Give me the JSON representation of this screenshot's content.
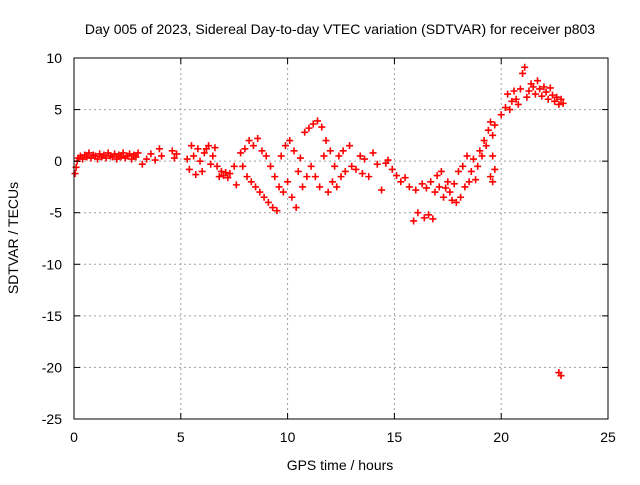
{
  "chart_data": {
    "type": "scatter",
    "title": "Day 005 of 2023, Sidereal Day-to-day VTEC variation (SDTVAR) for receiver p803",
    "xlabel": "GPS time / hours",
    "ylabel": "SDTVAR / TECUs",
    "xlim": [
      0,
      25
    ],
    "ylim": [
      -25,
      10
    ],
    "x_ticks": [
      0,
      5,
      10,
      15,
      20,
      25
    ],
    "y_ticks": [
      -25,
      -20,
      -15,
      -10,
      -5,
      0,
      5,
      10
    ],
    "grid": true,
    "marker": "+",
    "series": [
      {
        "name": "SDTVAR",
        "color": "#ff0000",
        "points": [
          [
            0.05,
            -1.2
          ],
          [
            0.1,
            -0.6
          ],
          [
            0.15,
            0.0
          ],
          [
            0.2,
            0.3
          ],
          [
            0.3,
            0.5
          ],
          [
            0.4,
            0.2
          ],
          [
            0.5,
            0.6
          ],
          [
            0.6,
            0.4
          ],
          [
            0.7,
            0.8
          ],
          [
            0.8,
            0.3
          ],
          [
            0.9,
            0.6
          ],
          [
            1.0,
            0.5
          ],
          [
            1.1,
            0.2
          ],
          [
            1.2,
            0.7
          ],
          [
            1.3,
            0.4
          ],
          [
            1.4,
            0.6
          ],
          [
            1.5,
            0.3
          ],
          [
            1.6,
            0.8
          ],
          [
            1.7,
            0.5
          ],
          [
            1.8,
            0.4
          ],
          [
            1.9,
            0.7
          ],
          [
            2.0,
            0.2
          ],
          [
            2.1,
            0.6
          ],
          [
            2.2,
            0.4
          ],
          [
            2.3,
            0.8
          ],
          [
            2.4,
            0.3
          ],
          [
            2.5,
            0.5
          ],
          [
            2.6,
            0.7
          ],
          [
            2.7,
            0.2
          ],
          [
            2.8,
            0.6
          ],
          [
            2.9,
            0.4
          ],
          [
            3.0,
            0.8
          ],
          [
            3.2,
            -0.3
          ],
          [
            3.4,
            0.2
          ],
          [
            3.6,
            0.7
          ],
          [
            3.8,
            0.1
          ],
          [
            4.0,
            1.2
          ],
          [
            4.1,
            0.5
          ],
          [
            4.6,
            1.0
          ],
          [
            4.7,
            0.3
          ],
          [
            4.8,
            0.7
          ],
          [
            5.3,
            0.2
          ],
          [
            5.4,
            -0.8
          ],
          [
            5.5,
            1.5
          ],
          [
            5.6,
            0.5
          ],
          [
            5.7,
            -1.3
          ],
          [
            5.8,
            1.2
          ],
          [
            5.9,
            0.0
          ],
          [
            6.0,
            -1.0
          ],
          [
            6.1,
            0.8
          ],
          [
            6.2,
            1.2
          ],
          [
            6.3,
            1.5
          ],
          [
            6.4,
            -0.3
          ],
          [
            6.5,
            0.5
          ],
          [
            6.6,
            1.3
          ],
          [
            6.7,
            -0.5
          ],
          [
            6.8,
            -1.5
          ],
          [
            6.9,
            -1.0
          ],
          [
            7.0,
            -1.4
          ],
          [
            7.1,
            -1.1
          ],
          [
            7.2,
            -1.6
          ],
          [
            7.3,
            -1.2
          ],
          [
            7.5,
            -0.5
          ],
          [
            7.6,
            -2.3
          ],
          [
            7.8,
            0.8
          ],
          [
            7.9,
            -0.5
          ],
          [
            8.0,
            1.2
          ],
          [
            8.1,
            -1.5
          ],
          [
            8.2,
            2.0
          ],
          [
            8.3,
            -2.0
          ],
          [
            8.4,
            1.5
          ],
          [
            8.5,
            -2.5
          ],
          [
            8.6,
            2.2
          ],
          [
            8.7,
            -3.0
          ],
          [
            8.8,
            1.0
          ],
          [
            8.9,
            -3.5
          ],
          [
            9.0,
            0.5
          ],
          [
            9.1,
            -4.0
          ],
          [
            9.2,
            -0.5
          ],
          [
            9.3,
            -4.5
          ],
          [
            9.4,
            -1.5
          ],
          [
            9.5,
            -4.8
          ],
          [
            9.6,
            -2.5
          ],
          [
            9.7,
            0.5
          ],
          [
            9.8,
            -3.0
          ],
          [
            9.9,
            1.5
          ],
          [
            10.0,
            -2.0
          ],
          [
            10.1,
            2.0
          ],
          [
            10.2,
            -3.5
          ],
          [
            10.3,
            1.0
          ],
          [
            10.4,
            -4.5
          ],
          [
            10.5,
            -1.0
          ],
          [
            10.6,
            0.3
          ],
          [
            10.7,
            -2.5
          ],
          [
            10.8,
            2.8
          ],
          [
            10.9,
            -1.5
          ],
          [
            11.0,
            3.2
          ],
          [
            11.1,
            -0.5
          ],
          [
            11.2,
            3.6
          ],
          [
            11.3,
            -1.5
          ],
          [
            11.4,
            3.9
          ],
          [
            11.5,
            -2.5
          ],
          [
            11.6,
            3.3
          ],
          [
            11.7,
            0.5
          ],
          [
            11.8,
            2.0
          ],
          [
            11.9,
            -3.0
          ],
          [
            12.0,
            1.0
          ],
          [
            12.1,
            -2.0
          ],
          [
            12.2,
            -0.5
          ],
          [
            12.3,
            -2.5
          ],
          [
            12.4,
            0.5
          ],
          [
            12.5,
            -1.5
          ],
          [
            12.6,
            1.0
          ],
          [
            12.7,
            -1.0
          ],
          [
            12.9,
            1.5
          ],
          [
            13.0,
            -0.5
          ],
          [
            13.2,
            -0.8
          ],
          [
            13.4,
            0.5
          ],
          [
            13.5,
            -1.2
          ],
          [
            13.6,
            0.2
          ],
          [
            13.8,
            -1.5
          ],
          [
            14.0,
            0.8
          ],
          [
            14.2,
            -0.3
          ],
          [
            14.4,
            -2.8
          ],
          [
            14.6,
            -0.2
          ],
          [
            14.7,
            0.1
          ],
          [
            14.9,
            -0.8
          ],
          [
            15.1,
            -1.4
          ],
          [
            15.3,
            -2.0
          ],
          [
            15.5,
            -1.6
          ],
          [
            15.7,
            -2.5
          ],
          [
            15.9,
            -5.8
          ],
          [
            16.0,
            -2.8
          ],
          [
            16.1,
            -5.0
          ],
          [
            16.3,
            -2.2
          ],
          [
            16.4,
            -5.5
          ],
          [
            16.5,
            -2.6
          ],
          [
            16.6,
            -5.2
          ],
          [
            16.7,
            -2.0
          ],
          [
            16.8,
            -5.6
          ],
          [
            16.9,
            -3.0
          ],
          [
            17.0,
            -1.4
          ],
          [
            17.1,
            -2.5
          ],
          [
            17.2,
            -1.0
          ],
          [
            17.3,
            -3.5
          ],
          [
            17.4,
            -2.6
          ],
          [
            17.5,
            -2.0
          ],
          [
            17.6,
            -3.0
          ],
          [
            17.7,
            -3.8
          ],
          [
            17.8,
            -2.2
          ],
          [
            17.9,
            -4.0
          ],
          [
            18.0,
            -1.0
          ],
          [
            18.1,
            -3.5
          ],
          [
            18.2,
            -0.5
          ],
          [
            18.3,
            -2.5
          ],
          [
            18.4,
            0.5
          ],
          [
            18.5,
            -2.0
          ],
          [
            18.6,
            -1.0
          ],
          [
            18.7,
            0.2
          ],
          [
            18.8,
            -1.8
          ],
          [
            18.9,
            -0.5
          ],
          [
            19.0,
            1.0
          ],
          [
            19.1,
            0.5
          ],
          [
            19.2,
            2.0
          ],
          [
            19.3,
            1.5
          ],
          [
            19.4,
            3.0
          ],
          [
            19.5,
            3.8
          ],
          [
            19.6,
            2.5
          ],
          [
            19.7,
            3.5
          ],
          [
            19.5,
            -1.5
          ],
          [
            19.6,
            -2.0
          ],
          [
            19.7,
            -0.8
          ],
          [
            19.6,
            0.5
          ],
          [
            20.0,
            4.5
          ],
          [
            20.2,
            5.2
          ],
          [
            20.3,
            6.5
          ],
          [
            20.4,
            5.0
          ],
          [
            20.5,
            5.8
          ],
          [
            20.6,
            6.8
          ],
          [
            20.7,
            6.0
          ],
          [
            20.8,
            5.5
          ],
          [
            20.9,
            7.0
          ],
          [
            21.0,
            8.5
          ],
          [
            21.1,
            9.1
          ],
          [
            21.2,
            6.2
          ],
          [
            21.3,
            6.8
          ],
          [
            21.4,
            7.5
          ],
          [
            21.5,
            7.2
          ],
          [
            21.6,
            6.5
          ],
          [
            21.7,
            7.8
          ],
          [
            21.8,
            7.0
          ],
          [
            21.9,
            6.3
          ],
          [
            22.0,
            7.2
          ],
          [
            22.1,
            6.7
          ],
          [
            22.2,
            6.0
          ],
          [
            22.3,
            7.1
          ],
          [
            22.4,
            6.4
          ],
          [
            22.5,
            5.8
          ],
          [
            22.6,
            6.2
          ],
          [
            22.7,
            5.5
          ],
          [
            22.8,
            6.0
          ],
          [
            22.9,
            5.6
          ],
          [
            22.7,
            -20.5
          ],
          [
            22.8,
            -20.8
          ]
        ]
      }
    ]
  }
}
